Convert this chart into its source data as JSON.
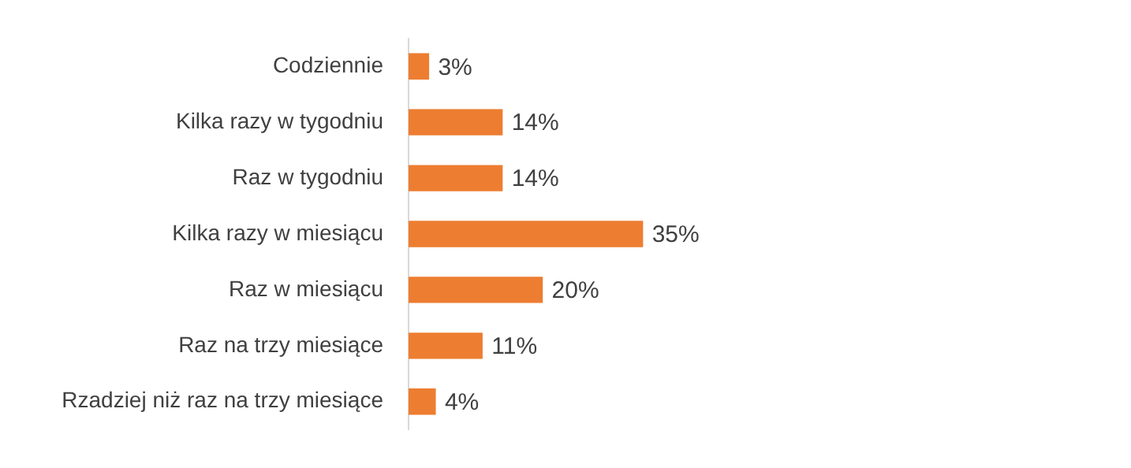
{
  "chart_data": {
    "type": "bar",
    "orientation": "horizontal",
    "categories": [
      "Codziennie",
      "Kilka razy w tygodniu",
      "Raz w tygodniu",
      "Kilka razy w miesiącu",
      "Raz w miesiącu",
      "Raz na trzy miesiące",
      "Rzadziej niż raz na trzy miesiące"
    ],
    "values": [
      3,
      14,
      14,
      35,
      20,
      11,
      4
    ],
    "value_labels": [
      "3%",
      "14%",
      "14%",
      "35%",
      "20%",
      "11%",
      "4%"
    ],
    "color": "#ed7d31",
    "tick_labels": "y"
  }
}
